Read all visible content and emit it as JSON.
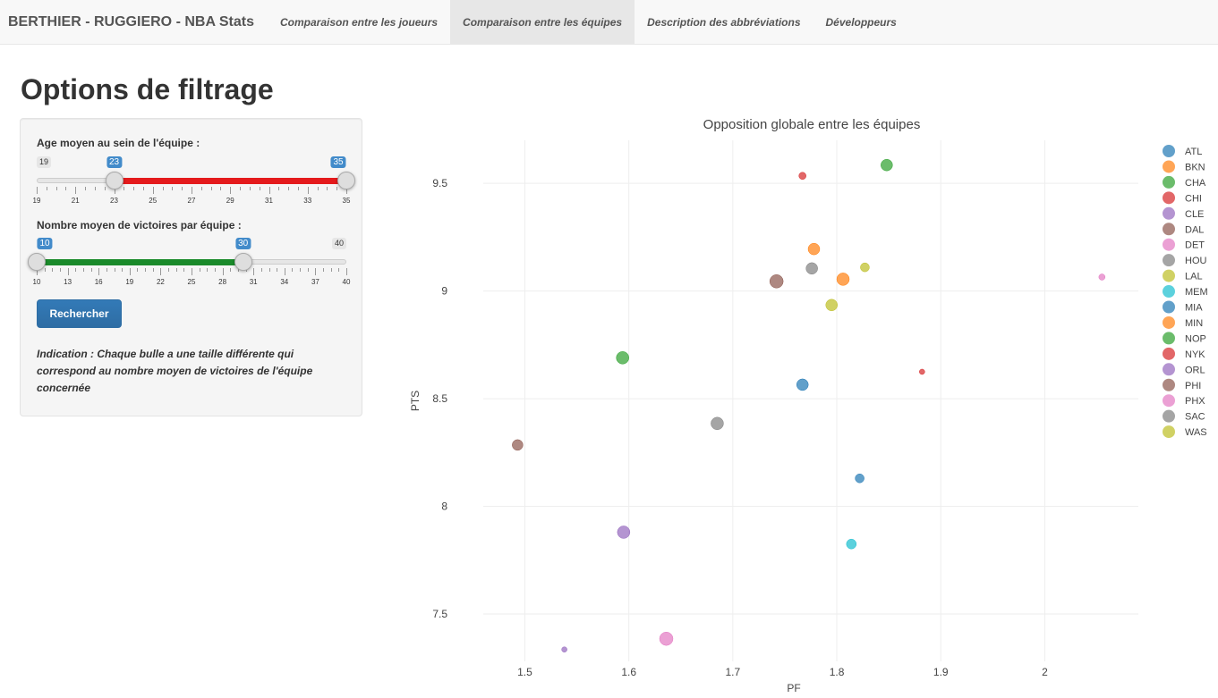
{
  "navbar": {
    "brand": "BERTHIER - RUGGIERO - NBA Stats",
    "tabs": [
      {
        "label": "Comparaison entre les joueurs",
        "active": false
      },
      {
        "label": "Comparaison entre les équipes",
        "active": true
      },
      {
        "label": "Description des abbréviations",
        "active": false
      },
      {
        "label": "Développeurs",
        "active": false
      }
    ]
  },
  "sidebar": {
    "title": "Options de filtrage",
    "age_slider": {
      "label": "Age moyen au sein de l'équipe :",
      "min": 19,
      "max": 35,
      "from": 23,
      "to": 35,
      "min_label": "19",
      "max_label": "35",
      "from_label": "23",
      "to_label": "35",
      "ticks": [
        "19",
        "21",
        "23",
        "25",
        "27",
        "29",
        "31",
        "33",
        "35"
      ],
      "bar_color": "#e41a1c"
    },
    "wins_slider": {
      "label": "Nombre moyen de victoires par équipe :",
      "min": 10,
      "max": 40,
      "from": 10,
      "to": 30,
      "min_label": "10",
      "max_label": "40",
      "from_label": "10",
      "to_label": "30",
      "ticks": [
        "10",
        "13",
        "16",
        "19",
        "22",
        "25",
        "28",
        "31",
        "34",
        "37",
        "40"
      ],
      "bar_color": "#1a8a2a"
    },
    "search_button": "Rechercher",
    "hint": "Indication : Chaque bulle a une taille différente qui correspond au nombre moyen de victoires de l'équipe concernée"
  },
  "chart_data": {
    "type": "scatter",
    "title": "Opposition globale entre les équipes",
    "xlabel": "PF",
    "ylabel": "PTS",
    "xlim": [
      1.46,
      2.09
    ],
    "ylim": [
      7.28,
      9.7
    ],
    "xticks": [
      1.5,
      1.6,
      1.7,
      1.8,
      1.9,
      2
    ],
    "xtick_labels": [
      "1.5",
      "1.6",
      "1.7",
      "1.8",
      "1.9",
      "2"
    ],
    "yticks": [
      7.5,
      8,
      8.5,
      9,
      9.5
    ],
    "ytick_labels": [
      "7.5",
      "8",
      "8.5",
      "9",
      "9.5"
    ],
    "grid": true,
    "legend_position": "right",
    "series": [
      {
        "name": "ATL",
        "color": "#1f77b4",
        "x": 1.767,
        "y": 8.565,
        "size": 12
      },
      {
        "name": "BKN",
        "color": "#ff7f0e",
        "x": 1.778,
        "y": 9.195,
        "size": 12
      },
      {
        "name": "CHA",
        "color": "#2ca02c",
        "x": 1.848,
        "y": 9.585,
        "size": 12
      },
      {
        "name": "CHI",
        "color": "#d62728",
        "x": 1.767,
        "y": 9.535,
        "size": 7
      },
      {
        "name": "CLE",
        "color": "#9467bd",
        "x": 1.538,
        "y": 7.335,
        "size": 5
      },
      {
        "name": "DAL",
        "color": "#8c564b",
        "x": 1.742,
        "y": 9.045,
        "size": 14
      },
      {
        "name": "DET",
        "color": "#e377c2",
        "x": 2.055,
        "y": 9.065,
        "size": 6
      },
      {
        "name": "HOU",
        "color": "#7f7f7f",
        "x": 1.776,
        "y": 9.105,
        "size": 12
      },
      {
        "name": "LAL",
        "color": "#bcbd22",
        "x": 1.795,
        "y": 8.935,
        "size": 12
      },
      {
        "name": "MEM",
        "color": "#17becf",
        "x": 1.814,
        "y": 7.825,
        "size": 10
      },
      {
        "name": "MIA",
        "color": "#1f77b4",
        "x": 1.822,
        "y": 8.13,
        "size": 9
      },
      {
        "name": "MIN",
        "color": "#ff7f0e",
        "x": 1.806,
        "y": 9.055,
        "size": 13
      },
      {
        "name": "NOP",
        "color": "#2ca02c",
        "x": 1.594,
        "y": 8.69,
        "size": 13
      },
      {
        "name": "NYK",
        "color": "#d62728",
        "x": 1.882,
        "y": 8.625,
        "size": 5
      },
      {
        "name": "ORL",
        "color": "#9467bd",
        "x": 1.595,
        "y": 7.88,
        "size": 13
      },
      {
        "name": "PHI",
        "color": "#8c564b",
        "x": 1.493,
        "y": 8.285,
        "size": 11
      },
      {
        "name": "PHX",
        "color": "#e377c2",
        "x": 1.636,
        "y": 7.385,
        "size": 14
      },
      {
        "name": "SAC",
        "color": "#7f7f7f",
        "x": 1.685,
        "y": 8.385,
        "size": 13
      },
      {
        "name": "WAS",
        "color": "#bcbd22",
        "x": 1.827,
        "y": 9.11,
        "size": 9
      }
    ]
  }
}
